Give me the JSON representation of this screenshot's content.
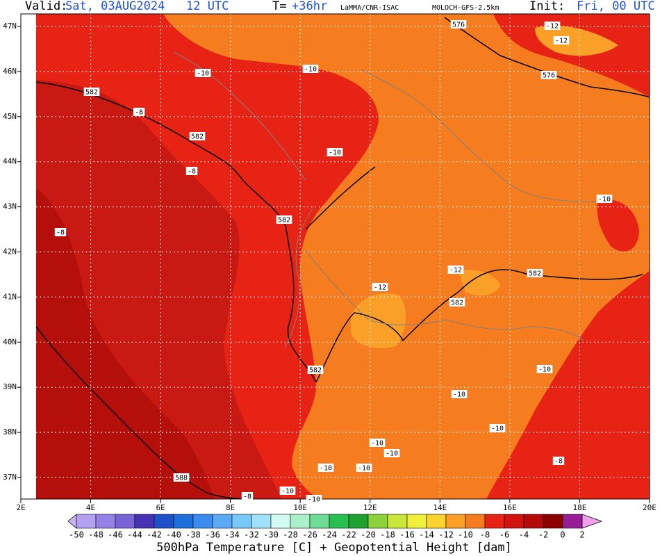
{
  "header": {
    "valid_label": "Valid:",
    "valid_time": "Sat, 03AUG2024   12 UTC",
    "lead_label": "T=",
    "lead_time": "+36hr",
    "source": "LaMMA/CNR-ISAC",
    "model": "MOLOCH-GFS-2.5km",
    "init_label": "Init:",
    "init_time": "Fri, 00 UTC"
  },
  "map": {
    "lat_labels": [
      "47N",
      "46N",
      "45N",
      "44N",
      "43N",
      "42N",
      "41N",
      "40N",
      "39N",
      "38N",
      "37N"
    ],
    "lon_labels": [
      "2E",
      "4E",
      "6E",
      "8E",
      "10E",
      "12E",
      "14E",
      "16E",
      "18E",
      "20E"
    ],
    "contour_labels": [
      "576",
      "-12",
      "-12",
      "576",
      "-10",
      "-10",
      "582",
      "-8",
      "582",
      "-10",
      "-8",
      "-10",
      "582",
      "-8",
      "-12",
      "582",
      "-12",
      "582",
      "582",
      "-10",
      "-10",
      "-10",
      "-10",
      "-10",
      "-8",
      "-10",
      "-10",
      "588",
      "-8",
      "-10",
      "-10"
    ]
  },
  "colorbar": {
    "labels": [
      "-50",
      "-48",
      "-46",
      "-44",
      "-42",
      "-40",
      "-38",
      "-36",
      "-34",
      "-32",
      "-30",
      "-28",
      "-26",
      "-24",
      "-22",
      "-20",
      "-18",
      "-16",
      "-14",
      "-12",
      "-10",
      "-8",
      "-6",
      "-4",
      "-2",
      "0",
      "2"
    ],
    "colors": [
      "#b4a0f0",
      "#9682e6",
      "#7864d6",
      "#4632b4",
      "#1e50c8",
      "#1e6edc",
      "#3c8cf0",
      "#5aaaf5",
      "#78c8fa",
      "#a0e1fa",
      "#d2faf0",
      "#aaf0c8",
      "#6edc96",
      "#28be50",
      "#1ea032",
      "#8cd23c",
      "#c8e63c",
      "#f0f03c",
      "#fad232",
      "#faa028",
      "#f57d1f",
      "#e62314",
      "#d21410",
      "#b40a0a",
      "#8c0000",
      "#961e96"
    ],
    "low_color": "#c8b4f0",
    "high_color": "#f0a0e8"
  },
  "footer": {
    "title": "500hPa Temperature [C] + Geopotential Height [dam]"
  }
}
